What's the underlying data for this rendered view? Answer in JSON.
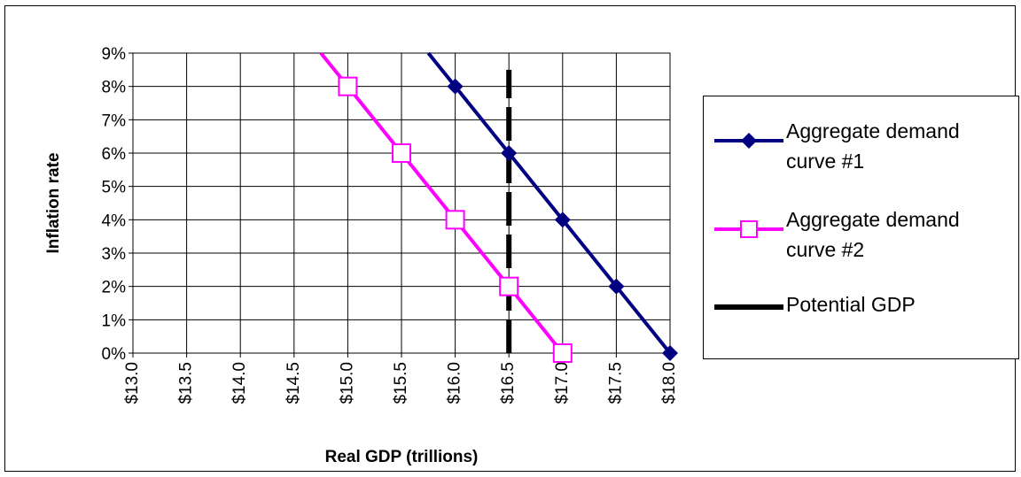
{
  "chart_data": {
    "type": "line",
    "title": "",
    "xlabel": "Real GDP (trillions)",
    "ylabel": "Inflation rate",
    "xlim": [
      13.0,
      18.0
    ],
    "ylim": [
      0,
      9
    ],
    "x_ticks": [
      "$13.0",
      "$13.5",
      "$14.0",
      "$14.5",
      "$15.0",
      "$15.5",
      "$16.0",
      "$16.5",
      "$17.0",
      "$17.5",
      "$18.0"
    ],
    "x_tick_values": [
      13.0,
      13.5,
      14.0,
      14.5,
      15.0,
      15.5,
      16.0,
      16.5,
      17.0,
      17.5,
      18.0
    ],
    "y_ticks": [
      "0%",
      "1%",
      "2%",
      "3%",
      "4%",
      "5%",
      "6%",
      "7%",
      "8%",
      "9%"
    ],
    "y_tick_values": [
      0,
      1,
      2,
      3,
      4,
      5,
      6,
      7,
      8,
      9
    ],
    "grid": true,
    "legend_position": "right",
    "series": [
      {
        "name": "Aggregate demand curve #1",
        "color": "#000080",
        "marker": "diamond-filled",
        "points": [
          [
            16.0,
            8
          ],
          [
            16.5,
            6
          ],
          [
            17.0,
            4
          ],
          [
            17.5,
            2
          ],
          [
            18.0,
            0
          ]
        ],
        "line_extends_to": [
          15.75,
          9
        ]
      },
      {
        "name": "Aggregate demand curve #2",
        "color": "#ff00ff",
        "marker": "square-open",
        "points": [
          [
            15.0,
            8
          ],
          [
            15.5,
            6
          ],
          [
            16.0,
            4
          ],
          [
            16.5,
            2
          ],
          [
            17.0,
            0
          ]
        ],
        "line_extends_to": [
          14.75,
          9
        ]
      },
      {
        "name": "Potential GDP",
        "color": "#000000",
        "style": "dashed-thick",
        "points": [
          [
            16.5,
            0
          ],
          [
            16.5,
            8.5
          ]
        ]
      }
    ]
  }
}
